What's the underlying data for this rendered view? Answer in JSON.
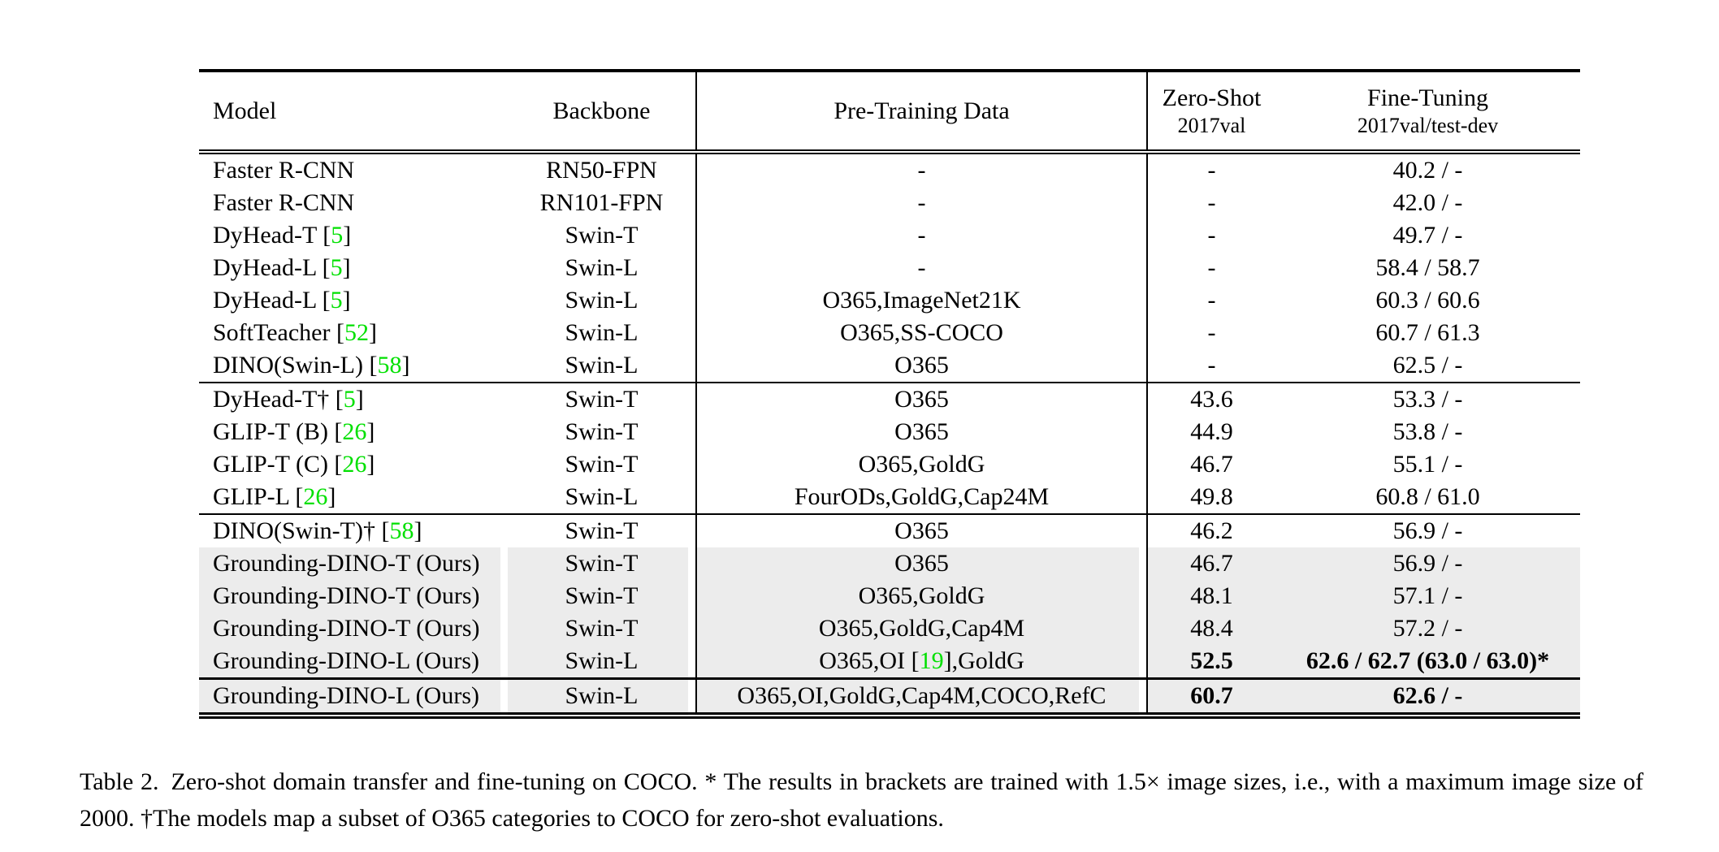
{
  "colors": {
    "citation_green": "#00e000",
    "highlight_gray": "#ececec",
    "text": "#000000",
    "page_background": "#ffffff"
  },
  "table": {
    "headers": {
      "model": "Model",
      "backbone": "Backbone",
      "pretrain": "Pre-Training Data",
      "zeroshot_line1": "Zero-Shot",
      "zeroshot_line2": "2017val",
      "finetune_line1": "Fine-Tuning",
      "finetune_line2": "2017val/test-dev"
    },
    "sections": [
      {
        "name": "closed-set-detectors",
        "rows": [
          {
            "model": "Faster R-CNN",
            "backbone": "RN50-FPN",
            "pretrain": "-",
            "zeroshot": "-",
            "finetune": "40.2 / -",
            "highlight": false,
            "bold_metrics": false
          },
          {
            "model": "Faster R-CNN",
            "backbone": "RN101-FPN",
            "pretrain": "-",
            "zeroshot": "-",
            "finetune": "42.0 / -",
            "highlight": false,
            "bold_metrics": false
          },
          {
            "model": "DyHead-T [5]",
            "backbone": "Swin-T",
            "pretrain": "-",
            "zeroshot": "-",
            "finetune": "49.7 / -",
            "highlight": false,
            "bold_metrics": false
          },
          {
            "model": "DyHead-L [5]",
            "backbone": "Swin-L",
            "pretrain": "-",
            "zeroshot": "-",
            "finetune": "58.4 / 58.7",
            "highlight": false,
            "bold_metrics": false
          },
          {
            "model": "DyHead-L [5]",
            "backbone": "Swin-L",
            "pretrain": "O365,ImageNet21K",
            "zeroshot": "-",
            "finetune": "60.3 / 60.6",
            "highlight": false,
            "bold_metrics": false
          },
          {
            "model": "SoftTeacher [52]",
            "backbone": "Swin-L",
            "pretrain": "O365,SS-COCO",
            "zeroshot": "-",
            "finetune": "60.7 / 61.3",
            "highlight": false,
            "bold_metrics": false
          },
          {
            "model": "DINO(Swin-L) [58]",
            "backbone": "Swin-L",
            "pretrain": "O365",
            "zeroshot": "-",
            "finetune": "62.5 / -",
            "highlight": false,
            "bold_metrics": false
          }
        ]
      },
      {
        "name": "zero-shot-transfer-baselines",
        "rows": [
          {
            "model": "DyHead-T† [5]",
            "backbone": "Swin-T",
            "pretrain": "O365",
            "zeroshot": "43.6",
            "finetune": "53.3 / -",
            "highlight": false,
            "bold_metrics": false
          },
          {
            "model": "GLIP-T (B) [26]",
            "backbone": "Swin-T",
            "pretrain": "O365",
            "zeroshot": "44.9",
            "finetune": "53.8 / -",
            "highlight": false,
            "bold_metrics": false
          },
          {
            "model": "GLIP-T (C) [26]",
            "backbone": "Swin-T",
            "pretrain": "O365,GoldG",
            "zeroshot": "46.7",
            "finetune": "55.1 / -",
            "highlight": false,
            "bold_metrics": false
          },
          {
            "model": "GLIP-L [26]",
            "backbone": "Swin-L",
            "pretrain": "FourODs,GoldG,Cap24M",
            "zeroshot": "49.8",
            "finetune": "60.8 / 61.0",
            "highlight": false,
            "bold_metrics": false
          }
        ]
      },
      {
        "name": "grounding-dino-results",
        "rows": [
          {
            "model": "DINO(Swin-T)† [58]",
            "backbone": "Swin-T",
            "pretrain": "O365",
            "zeroshot": "46.2",
            "finetune": "56.9 / -",
            "highlight": false,
            "bold_metrics": false
          },
          {
            "model": "Grounding-DINO-T (Ours)",
            "backbone": "Swin-T",
            "pretrain": "O365",
            "zeroshot": "46.7",
            "finetune": "56.9 / -",
            "highlight": true,
            "bold_metrics": false
          },
          {
            "model": "Grounding-DINO-T (Ours)",
            "backbone": "Swin-T",
            "pretrain": "O365,GoldG",
            "zeroshot": "48.1",
            "finetune": "57.1 / -",
            "highlight": true,
            "bold_metrics": false
          },
          {
            "model": "Grounding-DINO-T (Ours)",
            "backbone": "Swin-T",
            "pretrain": "O365,GoldG,Cap4M",
            "zeroshot": "48.4",
            "finetune": "57.2 / -",
            "highlight": true,
            "bold_metrics": false
          },
          {
            "model": "Grounding-DINO-L (Ours)",
            "backbone": "Swin-L",
            "pretrain": "O365,OI [19],GoldG",
            "zeroshot": "52.5",
            "finetune": "62.6 / 62.7 (63.0 / 63.0)*",
            "highlight": true,
            "bold_metrics": true
          }
        ]
      },
      {
        "name": "grounding-dino-full-data",
        "rows": [
          {
            "model": "Grounding-DINO-L (Ours)",
            "backbone": "Swin-L",
            "pretrain": "O365,OI,GoldG,Cap4M,COCO,RefC",
            "zeroshot": "60.7",
            "finetune": "62.6 / -",
            "highlight": true,
            "bold_metrics": true
          }
        ]
      }
    ]
  },
  "caption": {
    "text": "Table 2. Zero-shot domain transfer and fine-tuning on COCO. * The results in brackets are trained with 1.5× image sizes, i.e., with a maximum image size of 2000. †The models map a subset of O365 categories to COCO for zero-shot evaluations."
  }
}
